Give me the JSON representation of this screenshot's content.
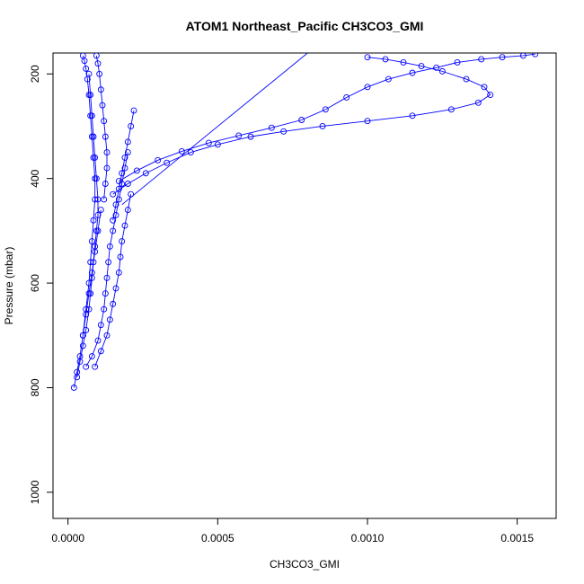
{
  "chart_data": {
    "type": "scatter",
    "title": "ATOM1 Northeast_Pacific CH3CO3_GMI",
    "xlabel": "CH3CO3_GMI",
    "ylabel": "Pressure (mbar)",
    "xlim": [
      -5e-05,
      0.00163
    ],
    "ylim": [
      1050,
      160
    ],
    "y_reversed": true,
    "x_ticks": [
      0.0,
      0.0005,
      0.001,
      0.0015
    ],
    "x_tick_labels": [
      "0.0000",
      "0.0005",
      "0.0010",
      "0.0015"
    ],
    "y_ticks": [
      200,
      400,
      600,
      800,
      1000
    ],
    "y_tick_labels": [
      "200",
      "400",
      "600",
      "800",
      "1000"
    ],
    "grid": false,
    "color": "#0000ff",
    "series": [
      {
        "x": [
          2e-05,
          3e-05,
          4e-05,
          5e-05,
          6e-05,
          7e-05,
          8e-05,
          9e-05,
          0.0001,
          0.00011
        ],
        "y": [
          800,
          770,
          740,
          700,
          660,
          620,
          580,
          540,
          500,
          460
        ]
      },
      {
        "x": [
          3e-05,
          4e-05,
          5e-05,
          6e-05,
          7e-05,
          7.5e-05,
          8e-05,
          8.5e-05,
          9e-05,
          9.5e-05,
          0.0001,
          0.0001,
          9.5e-05,
          9e-05,
          8.5e-05,
          8e-05,
          7.5e-05,
          7e-05
        ],
        "y": [
          780,
          750,
          720,
          690,
          650,
          620,
          590,
          560,
          530,
          500,
          470,
          440,
          400,
          360,
          320,
          280,
          240,
          200
        ]
      },
      {
        "x": [
          6e-05,
          8e-05,
          0.0001,
          0.00011,
          0.00012,
          0.000125,
          0.00013,
          0.000135,
          0.00014,
          0.00015,
          0.00016,
          0.00017,
          0.00018,
          0.00019,
          0.0002
        ],
        "y": [
          760,
          740,
          710,
          680,
          650,
          620,
          590,
          560,
          530,
          500,
          470,
          440,
          410,
          380,
          350
        ]
      },
      {
        "x": [
          9e-05,
          0.00011,
          0.00013,
          0.00014,
          0.00015,
          0.00016,
          0.00017,
          0.000175,
          0.00018,
          0.00019,
          0.0002,
          0.00021
        ],
        "y": [
          760,
          730,
          700,
          670,
          640,
          610,
          580,
          550,
          520,
          490,
          460,
          430
        ]
      },
      {
        "x": [
          0.00012,
          0.000125,
          0.00013,
          0.00013,
          0.000125,
          0.00012,
          0.000115,
          0.00011,
          0.000105,
          0.0001,
          9.5e-05
        ],
        "y": [
          440,
          410,
          380,
          350,
          320,
          290,
          260,
          230,
          200,
          180,
          165
        ]
      },
      {
        "x": [
          0.00015,
          0.00016,
          0.00017,
          0.00018,
          0.00019,
          0.0002,
          0.00021,
          0.00022
        ],
        "y": [
          480,
          450,
          420,
          390,
          360,
          330,
          300,
          270
        ]
      },
      {
        "x": [
          5e-05,
          6e-05,
          7e-05,
          7.5e-05,
          8e-05,
          8.5e-05,
          9e-05,
          9e-05,
          8.5e-05,
          8e-05,
          7.5e-05,
          7e-05,
          6.5e-05,
          6e-05,
          5.5e-05,
          5e-05
        ],
        "y": [
          700,
          650,
          600,
          560,
          520,
          480,
          440,
          400,
          360,
          320,
          280,
          240,
          210,
          190,
          175,
          165
        ]
      },
      {
        "x": [
          0.00015,
          0.0002,
          0.00026,
          0.00033,
          0.00041,
          0.0005,
          0.00061,
          0.00072,
          0.00085,
          0.001,
          0.00115,
          0.00128,
          0.00137,
          0.00141,
          0.00139,
          0.00133,
          0.00125,
          0.00118,
          0.00112,
          0.00106,
          0.001
        ],
        "y": [
          430,
          410,
          390,
          370,
          350,
          335,
          320,
          310,
          300,
          290,
          280,
          268,
          255,
          240,
          225,
          210,
          195,
          185,
          178,
          172,
          168
        ]
      },
      {
        "x": [
          0.00017,
          0.00023,
          0.0003,
          0.00038,
          0.00047,
          0.00057,
          0.00068,
          0.00078,
          0.00086,
          0.00093,
          0.001,
          0.00107,
          0.00115,
          0.00123,
          0.0013,
          0.00138,
          0.00145,
          0.00152,
          0.00156
        ],
        "y": [
          405,
          385,
          365,
          348,
          332,
          318,
          303,
          288,
          268,
          245,
          225,
          210,
          198,
          188,
          178,
          172,
          168,
          165,
          162
        ]
      }
    ],
    "line_segment": {
      "x": [
        0.00018,
        0.0008
      ],
      "y": [
        450,
        160
      ]
    }
  }
}
